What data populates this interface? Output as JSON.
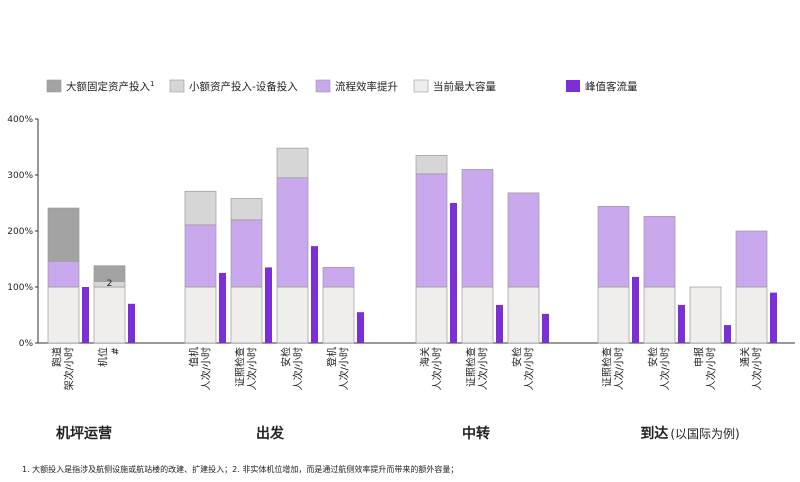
{
  "chart_data": {
    "type": "bar",
    "ylim": [
      0,
      400
    ],
    "y_ticks": [
      "0%",
      "100%",
      "200%",
      "300%",
      "400%"
    ],
    "grid": false,
    "legend_position": "top",
    "legend": [
      {
        "key": "major",
        "label": "大额固定资产投入",
        "sup": "1",
        "color": "#a3a3a3"
      },
      {
        "key": "minor",
        "label": "小额资产投入-设备投入",
        "color": "#d6d6d6"
      },
      {
        "key": "process",
        "label": "流程效率提升",
        "color": "#c9a8ee"
      },
      {
        "key": "current",
        "label": "当前最大容量",
        "color": "#f0eeec"
      },
      {
        "key": "peak",
        "label": "峰值客流量",
        "color": "#7c2fd6"
      }
    ],
    "groups": [
      {
        "name": "机坪运营",
        "suffix": "",
        "bars": [
          {
            "label": [
              "跑道",
              "架次/小时"
            ],
            "current": 100,
            "process": 46,
            "minor": 0,
            "major": 95,
            "peak": 100
          },
          {
            "label": [
              "机位",
              "#"
            ],
            "current": 100,
            "process": 0,
            "minor": 10,
            "major": 28,
            "peak": 70,
            "note": "2"
          }
        ]
      },
      {
        "name": "出发",
        "suffix": "",
        "bars": [
          {
            "label": [
              "值机",
              "人次/小时"
            ],
            "current": 100,
            "process": 111,
            "minor": 60,
            "major": 0,
            "peak": 125
          },
          {
            "label": [
              "证照检查",
              "人次/小时"
            ],
            "current": 100,
            "process": 120,
            "minor": 38,
            "major": 0,
            "peak": 135
          },
          {
            "label": [
              "安检",
              "人次/小时"
            ],
            "current": 100,
            "process": 195,
            "minor": 53,
            "major": 0,
            "peak": 173
          },
          {
            "label": [
              "登机",
              "人次/小时"
            ],
            "current": 100,
            "process": 35,
            "minor": 0,
            "major": 0,
            "peak": 55
          }
        ]
      },
      {
        "name": "中转",
        "suffix": "",
        "bars": [
          {
            "label": [
              "海关",
              "人次/小时"
            ],
            "current": 100,
            "process": 202,
            "minor": 33,
            "major": 0,
            "peak": 250
          },
          {
            "label": [
              "证照检查",
              "人次/小时"
            ],
            "current": 100,
            "process": 210,
            "minor": 0,
            "major": 0,
            "peak": 68
          },
          {
            "label": [
              "安检",
              "人次/小时"
            ],
            "current": 100,
            "process": 168,
            "minor": 0,
            "major": 0,
            "peak": 52
          }
        ]
      },
      {
        "name": "到达",
        "suffix": "(以国际为例)",
        "bars": [
          {
            "label": [
              "证照检查",
              "人次/小时"
            ],
            "current": 100,
            "process": 144,
            "minor": 0,
            "major": 0,
            "peak": 118
          },
          {
            "label": [
              "安检",
              "人次/小时"
            ],
            "current": 100,
            "process": 126,
            "minor": 0,
            "major": 0,
            "peak": 68
          },
          {
            "label": [
              "申报",
              "人次/小时"
            ],
            "current": 100,
            "process": 0,
            "minor": 0,
            "major": 0,
            "peak": 32
          },
          {
            "label": [
              "通关",
              "人次/小时"
            ],
            "current": 100,
            "process": 100,
            "minor": 0,
            "major": 0,
            "peak": 90
          }
        ]
      }
    ]
  },
  "footnote": "1. 大额投入是指涉及航侧设施或航站楼的改建、扩建投入；2. 非实体机位增加，而是通过航侧效率提升而带来的额外容量；"
}
